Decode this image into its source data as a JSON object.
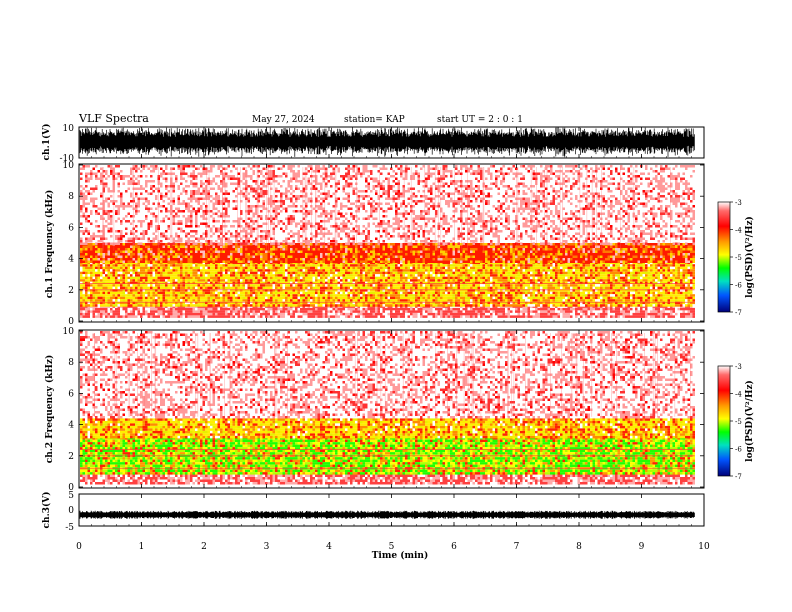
{
  "header": {
    "title": "VLF Spectra",
    "date": "May 27, 2024",
    "station": "station= KAP",
    "start": "start UT =  2 : 0 : 1"
  },
  "colorbar": {
    "label": "log(PSD)(V²/Hz)",
    "ticks": [
      "-3",
      "-4",
      "-5",
      "-6",
      "-7"
    ],
    "colors": [
      "#e60000",
      "#ff0000",
      "#ff8800",
      "#ffff00",
      "#00ff00",
      "#00ddcc",
      "#0066ff",
      "#0000b4"
    ]
  },
  "chart_data": [
    {
      "type": "line",
      "panel": "ch1-waveform",
      "ylabel": "ch.1(V)",
      "yticks": [
        "10",
        "-10"
      ],
      "ylim": [
        -10,
        10
      ],
      "xlim": [
        0,
        10
      ],
      "description_values": {
        "amplitude_range": [
          -10,
          10
        ]
      }
    },
    {
      "type": "heatmap",
      "panel": "ch1-spectrogram",
      "ylabel": "ch.1 Frequency (kHz)",
      "yticks": [
        "0",
        "2",
        "4",
        "6",
        "8",
        "10"
      ],
      "ylim": [
        0,
        10
      ],
      "xlim": [
        0,
        9.85
      ],
      "bands": [
        {
          "from": 0.2,
          "to": 1.0,
          "level": "high"
        },
        {
          "from": 1.0,
          "to": 3.8,
          "level": "yellow"
        },
        {
          "from": 3.8,
          "to": 5.0,
          "level": "red-dense"
        },
        {
          "from": 5.0,
          "to": 10.0,
          "level": "red-sparse"
        }
      ]
    },
    {
      "type": "heatmap",
      "panel": "ch2-spectrogram",
      "ylabel": "ch.2 Frequency (kHz)",
      "yticks": [
        "0",
        "2",
        "4",
        "6",
        "8",
        "10"
      ],
      "ylim": [
        0,
        10
      ],
      "xlim": [
        0,
        9.85
      ],
      "bands": [
        {
          "from": 0.2,
          "to": 0.8,
          "level": "high"
        },
        {
          "from": 0.8,
          "to": 3.2,
          "level": "green"
        },
        {
          "from": 3.2,
          "to": 4.4,
          "level": "yellow"
        },
        {
          "from": 4.4,
          "to": 10.0,
          "level": "red-sparse"
        }
      ]
    },
    {
      "type": "line",
      "panel": "ch3-waveform",
      "ylabel": "ch.3(V)",
      "yticks": [
        "5",
        "0",
        "-5"
      ],
      "ylim": [
        -5,
        5
      ],
      "xlim": [
        0,
        10
      ],
      "xlabel": "Time (min)",
      "xticks": [
        "0",
        "1",
        "2",
        "3",
        "4",
        "5",
        "6",
        "7",
        "8",
        "9",
        "10"
      ],
      "description_values": {
        "level": -1.5
      }
    }
  ]
}
